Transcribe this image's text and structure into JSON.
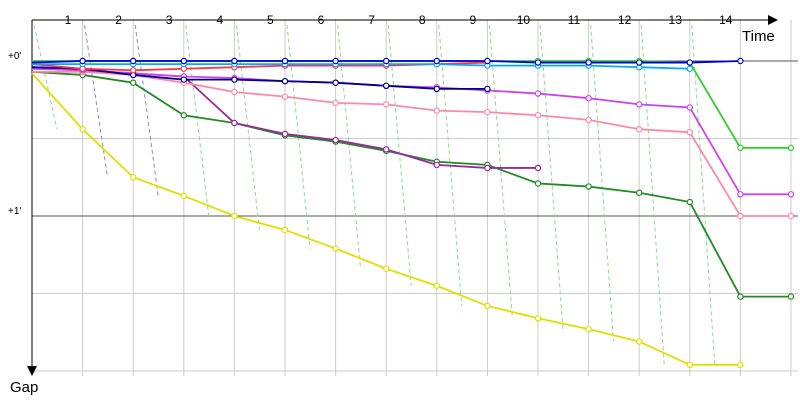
{
  "chart_data": {
    "type": "line",
    "xlabel": "Time",
    "ylabel": "Gap",
    "x_ticks": [
      "1",
      "2",
      "3",
      "4",
      "5",
      "6",
      "7",
      "8",
      "9",
      "10",
      "11",
      "12",
      "13",
      "14"
    ],
    "y_ticks": [
      {
        "value": 0,
        "label": "+0'"
      },
      {
        "value": 1,
        "label": "+1'"
      }
    ],
    "grid": true,
    "series": [
      {
        "color": "#e0e000",
        "x": [
          0,
          1,
          2,
          3,
          4,
          5,
          6,
          7,
          8,
          9,
          10,
          11,
          12,
          13,
          14
        ],
        "y": [
          0.08,
          0.44,
          0.75,
          0.87,
          1.0,
          1.09,
          1.21,
          1.34,
          1.45,
          1.58,
          1.66,
          1.73,
          1.81,
          1.96,
          1.96
        ]
      },
      {
        "color": "#228b22",
        "x": [
          0,
          1,
          2,
          3,
          4,
          5,
          6,
          7,
          8,
          9,
          10,
          11,
          12,
          13,
          14,
          15
        ],
        "y": [
          0.07,
          0.09,
          0.14,
          0.35,
          0.4,
          0.48,
          0.52,
          0.58,
          0.65,
          0.67,
          0.79,
          0.81,
          0.85,
          0.91,
          1.52,
          1.52
        ]
      },
      {
        "color": "#9a2a9a",
        "x": [
          0,
          1,
          2,
          3,
          4,
          5,
          6,
          7,
          8,
          9,
          10
        ],
        "y": [
          0.04,
          0.06,
          0.08,
          0.1,
          0.4,
          0.47,
          0.51,
          0.57,
          0.67,
          0.69,
          0.69
        ]
      },
      {
        "color": "#ff88aa",
        "x": [
          0,
          1,
          2,
          3,
          4,
          5,
          6,
          7,
          8,
          9,
          10,
          11,
          12,
          13,
          14,
          15
        ],
        "y": [
          0.07,
          0.07,
          0.09,
          0.14,
          0.2,
          0.23,
          0.27,
          0.28,
          0.32,
          0.33,
          0.35,
          0.38,
          0.44,
          0.46,
          1.0,
          1.0
        ]
      },
      {
        "color": "#cc44ee",
        "x": [
          0,
          1,
          2,
          3,
          4,
          5,
          6,
          7,
          8,
          9,
          10,
          11,
          12,
          13,
          14,
          15
        ],
        "y": [
          0.05,
          0.06,
          0.08,
          0.1,
          0.11,
          0.13,
          0.14,
          0.16,
          0.17,
          0.19,
          0.21,
          0.24,
          0.28,
          0.3,
          0.86,
          0.86
        ]
      },
      {
        "color": "#00008b",
        "x": [
          0,
          1,
          2,
          3,
          4,
          5,
          6,
          7,
          8,
          9
        ],
        "y": [
          0.04,
          0.05,
          0.09,
          0.12,
          0.12,
          0.13,
          0.14,
          0.16,
          0.18,
          0.18
        ]
      },
      {
        "color": "#ff3344",
        "x": [
          0,
          1,
          2,
          3,
          4,
          5,
          6,
          7,
          8,
          9
        ],
        "y": [
          0.02,
          0.05,
          0.06,
          0.05,
          0.04,
          0.03,
          0.03,
          0.03,
          0.02,
          0.01
        ]
      },
      {
        "color": "#00aaff",
        "x": [
          0,
          1,
          2,
          3,
          4,
          5,
          6,
          7,
          8,
          9,
          10,
          11,
          12,
          13
        ],
        "y": [
          0.02,
          0.02,
          0.02,
          0.02,
          0.02,
          0.02,
          0.02,
          0.02,
          0.02,
          0.03,
          0.03,
          0.03,
          0.04,
          0.05
        ]
      },
      {
        "color": "#33cc33",
        "x": [
          0,
          1,
          2,
          3,
          4,
          5,
          6,
          7,
          8,
          9,
          10,
          11,
          12,
          13,
          14,
          15
        ],
        "y": [
          0.0,
          0.0,
          0.0,
          0.0,
          0.0,
          0.0,
          0.0,
          0.0,
          0.0,
          0.0,
          0.0,
          0.0,
          0.0,
          0.01,
          0.56,
          0.56
        ]
      },
      {
        "color": "#0000dd",
        "x": [
          0,
          1,
          2,
          3,
          4,
          5,
          6,
          7,
          8,
          9,
          10,
          11,
          12,
          13,
          14
        ],
        "y": [
          0.01,
          0.0,
          0.0,
          0.0,
          0.0,
          0.0,
          0.0,
          0.0,
          0.0,
          0.0,
          0.01,
          0.01,
          0.01,
          0.01,
          0.0
        ]
      }
    ]
  }
}
